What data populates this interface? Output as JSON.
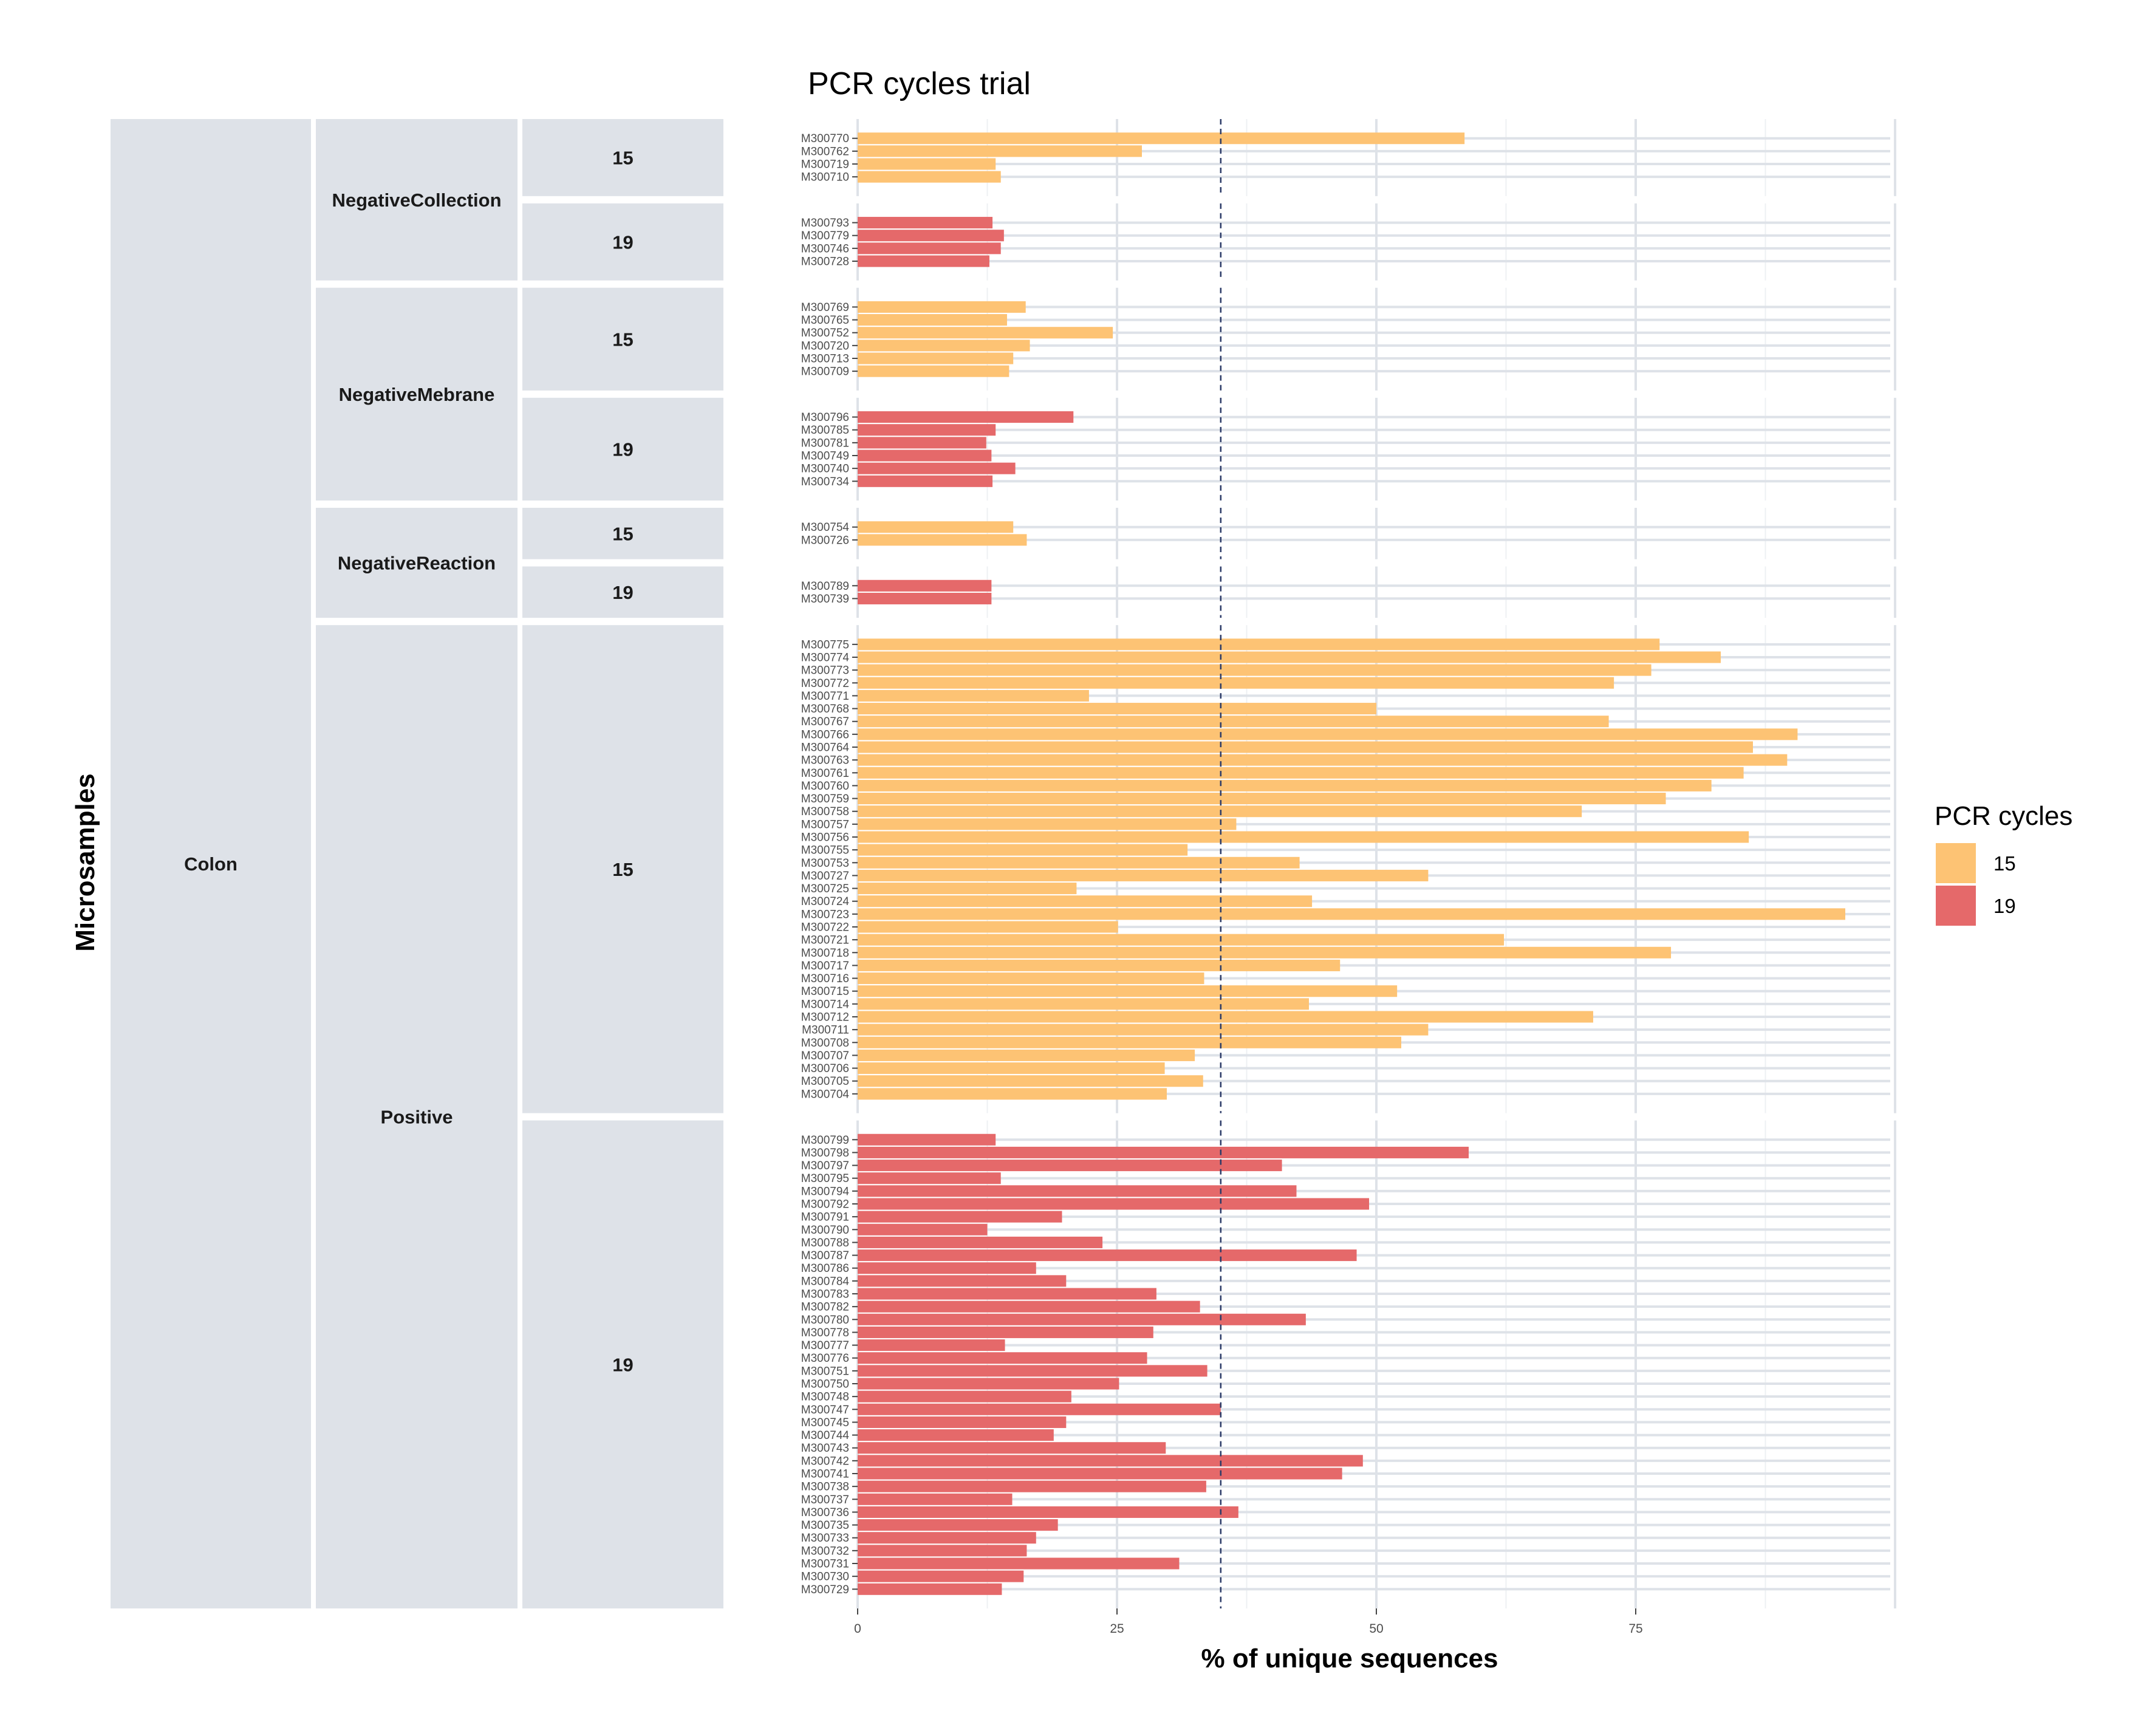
{
  "chart_data": {
    "type": "bar",
    "orientation": "horizontal",
    "title": "PCR cycles trial",
    "xlabel": "% of unique sequences",
    "ylabel": "Microsamples",
    "xlim": [
      0,
      100
    ],
    "xticks": [
      0,
      25,
      50,
      75
    ],
    "threshold_line": 35,
    "grid": true,
    "legend": {
      "title": "PCR cycles",
      "position": "right",
      "entries": [
        {
          "label": "15",
          "color": "#FDC374"
        },
        {
          "label": "19",
          "color": "#E5696A"
        }
      ]
    },
    "colors": {
      "15": "#FDC374",
      "19": "#E5696A"
    },
    "strips": {
      "level1": [
        {
          "label": "Colon"
        }
      ],
      "level2": [
        {
          "label": "NegativeCollection"
        },
        {
          "label": "NegativeMebrane"
        },
        {
          "label": "NegativeReaction"
        },
        {
          "label": "Positive"
        }
      ]
    },
    "panels": [
      {
        "group": "NegativeCollection",
        "cycles": "15",
        "samples": [
          {
            "id": "M300770",
            "value": 58.5
          },
          {
            "id": "M300762",
            "value": 27.4
          },
          {
            "id": "M300719",
            "value": 13.3
          },
          {
            "id": "M300710",
            "value": 13.8
          }
        ]
      },
      {
        "group": "NegativeCollection",
        "cycles": "19",
        "samples": [
          {
            "id": "M300793",
            "value": 13.0
          },
          {
            "id": "M300779",
            "value": 14.1
          },
          {
            "id": "M300746",
            "value": 13.8
          },
          {
            "id": "M300728",
            "value": 12.7
          }
        ]
      },
      {
        "group": "NegativeMebrane",
        "cycles": "15",
        "samples": [
          {
            "id": "M300769",
            "value": 16.2
          },
          {
            "id": "M300765",
            "value": 14.4
          },
          {
            "id": "M300752",
            "value": 24.6
          },
          {
            "id": "M300720",
            "value": 16.6
          },
          {
            "id": "M300713",
            "value": 15.0
          },
          {
            "id": "M300709",
            "value": 14.6
          }
        ]
      },
      {
        "group": "NegativeMebrane",
        "cycles": "19",
        "samples": [
          {
            "id": "M300796",
            "value": 20.8
          },
          {
            "id": "M300785",
            "value": 13.3
          },
          {
            "id": "M300781",
            "value": 12.4
          },
          {
            "id": "M300749",
            "value": 12.9
          },
          {
            "id": "M300740",
            "value": 15.2
          },
          {
            "id": "M300734",
            "value": 13.0
          }
        ]
      },
      {
        "group": "NegativeReaction",
        "cycles": "15",
        "samples": [
          {
            "id": "M300754",
            "value": 15.0
          },
          {
            "id": "M300726",
            "value": 16.3
          }
        ]
      },
      {
        "group": "NegativeReaction",
        "cycles": "19",
        "samples": [
          {
            "id": "M300789",
            "value": 12.9
          },
          {
            "id": "M300739",
            "value": 12.9
          }
        ]
      },
      {
        "group": "Positive",
        "cycles": "15",
        "samples": [
          {
            "id": "M300775",
            "value": 77.3
          },
          {
            "id": "M300774",
            "value": 83.2
          },
          {
            "id": "M300773",
            "value": 76.5
          },
          {
            "id": "M300772",
            "value": 72.9
          },
          {
            "id": "M300771",
            "value": 22.3
          },
          {
            "id": "M300768",
            "value": 50.0
          },
          {
            "id": "M300767",
            "value": 72.4
          },
          {
            "id": "M300766",
            "value": 90.6
          },
          {
            "id": "M300764",
            "value": 86.3
          },
          {
            "id": "M300763",
            "value": 89.6
          },
          {
            "id": "M300761",
            "value": 85.4
          },
          {
            "id": "M300760",
            "value": 82.3
          },
          {
            "id": "M300759",
            "value": 77.9
          },
          {
            "id": "M300758",
            "value": 69.8
          },
          {
            "id": "M300757",
            "value": 36.5
          },
          {
            "id": "M300756",
            "value": 85.9
          },
          {
            "id": "M300755",
            "value": 31.8
          },
          {
            "id": "M300753",
            "value": 42.6
          },
          {
            "id": "M300727",
            "value": 55.0
          },
          {
            "id": "M300725",
            "value": 21.1
          },
          {
            "id": "M300724",
            "value": 43.8
          },
          {
            "id": "M300723",
            "value": 95.2
          },
          {
            "id": "M300722",
            "value": 25.1
          },
          {
            "id": "M300721",
            "value": 62.3
          },
          {
            "id": "M300718",
            "value": 78.4
          },
          {
            "id": "M300717",
            "value": 46.5
          },
          {
            "id": "M300716",
            "value": 33.4
          },
          {
            "id": "M300715",
            "value": 52.0
          },
          {
            "id": "M300714",
            "value": 43.5
          },
          {
            "id": "M300712",
            "value": 70.9
          },
          {
            "id": "M300711",
            "value": 55.0
          },
          {
            "id": "M300708",
            "value": 52.4
          },
          {
            "id": "M300707",
            "value": 32.5
          },
          {
            "id": "M300706",
            "value": 29.6
          },
          {
            "id": "M300705",
            "value": 33.3
          },
          {
            "id": "M300704",
            "value": 29.8
          }
        ]
      },
      {
        "group": "Positive",
        "cycles": "19",
        "samples": [
          {
            "id": "M300799",
            "value": 13.3
          },
          {
            "id": "M300798",
            "value": 58.9
          },
          {
            "id": "M300797",
            "value": 40.9
          },
          {
            "id": "M300795",
            "value": 13.8
          },
          {
            "id": "M300794",
            "value": 42.3
          },
          {
            "id": "M300792",
            "value": 49.3
          },
          {
            "id": "M300791",
            "value": 19.7
          },
          {
            "id": "M300790",
            "value": 12.5
          },
          {
            "id": "M300788",
            "value": 23.6
          },
          {
            "id": "M300787",
            "value": 48.1
          },
          {
            "id": "M300786",
            "value": 17.2
          },
          {
            "id": "M300784",
            "value": 20.1
          },
          {
            "id": "M300783",
            "value": 28.8
          },
          {
            "id": "M300782",
            "value": 33.0
          },
          {
            "id": "M300780",
            "value": 43.2
          },
          {
            "id": "M300778",
            "value": 28.5
          },
          {
            "id": "M300777",
            "value": 14.2
          },
          {
            "id": "M300776",
            "value": 27.9
          },
          {
            "id": "M300751",
            "value": 33.7
          },
          {
            "id": "M300750",
            "value": 25.2
          },
          {
            "id": "M300748",
            "value": 20.6
          },
          {
            "id": "M300747",
            "value": 35.0
          },
          {
            "id": "M300745",
            "value": 20.1
          },
          {
            "id": "M300744",
            "value": 18.9
          },
          {
            "id": "M300743",
            "value": 29.7
          },
          {
            "id": "M300742",
            "value": 48.7
          },
          {
            "id": "M300741",
            "value": 46.7
          },
          {
            "id": "M300738",
            "value": 33.6
          },
          {
            "id": "M300737",
            "value": 14.9
          },
          {
            "id": "M300736",
            "value": 36.7
          },
          {
            "id": "M300735",
            "value": 19.3
          },
          {
            "id": "M300733",
            "value": 17.2
          },
          {
            "id": "M300732",
            "value": 16.3
          },
          {
            "id": "M300731",
            "value": 31.0
          },
          {
            "id": "M300730",
            "value": 16.0
          },
          {
            "id": "M300729",
            "value": 13.9
          }
        ]
      }
    ]
  }
}
